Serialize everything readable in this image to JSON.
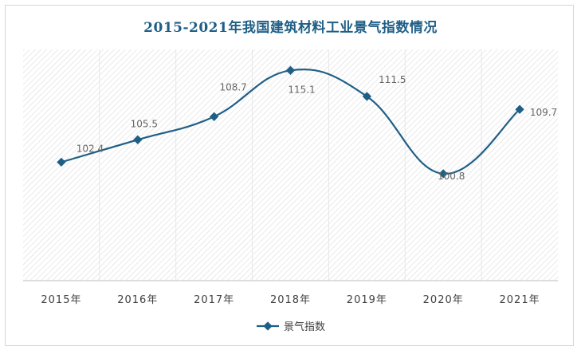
{
  "chart_data": {
    "type": "line",
    "title": "2015-2021年我国建筑材料工业景气指数情况",
    "categories": [
      "2015年",
      "2016年",
      "2017年",
      "2018年",
      "2019年",
      "2020年",
      "2021年"
    ],
    "series": [
      {
        "name": "景气指数",
        "values": [
          102.4,
          105.5,
          108.7,
          115.1,
          111.5,
          100.8,
          109.7
        ]
      }
    ],
    "data_labels": [
      "102.4",
      "105.5",
      "108.7",
      "115.1",
      "111.5",
      "100.8",
      "109.7"
    ],
    "xlabel": "",
    "ylabel": "",
    "ylim": [
      86,
      118
    ],
    "smooth": true,
    "grid": true,
    "legend": "bottom",
    "colors": {
      "line": "#1f5f86",
      "marker": "#1f5f86",
      "title": "#1f5f86",
      "hatch": "#d9d9d9"
    }
  }
}
